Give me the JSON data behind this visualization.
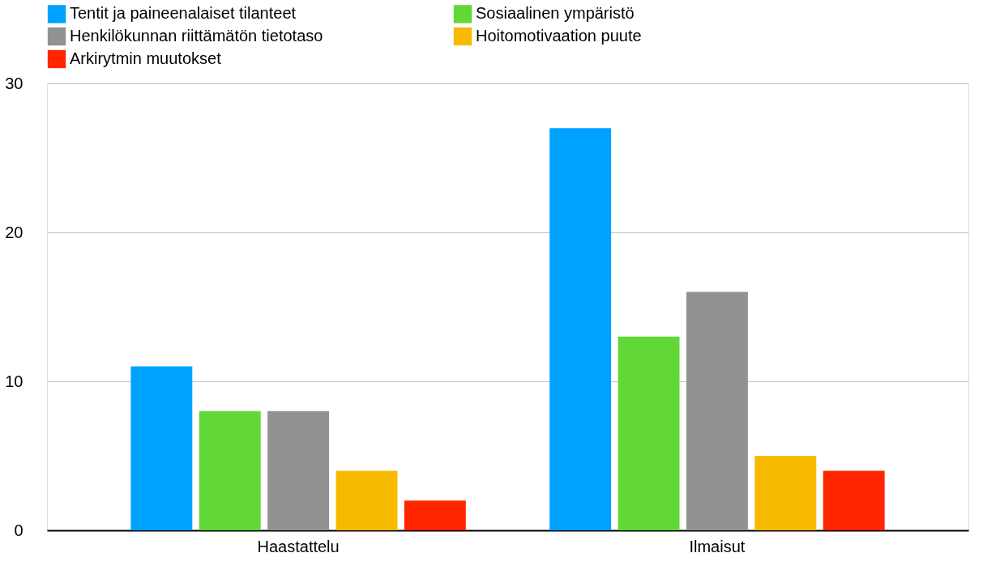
{
  "chart_data": {
    "type": "bar",
    "categories": [
      "Haastattelu",
      "Ilmaisut"
    ],
    "series": [
      {
        "name": "Tentit ja paineenalaiset tilanteet",
        "color": "#00a2ff",
        "values": [
          11,
          27
        ]
      },
      {
        "name": "Sosiaalinen ympäristö",
        "color": "#61d836",
        "values": [
          8,
          13
        ]
      },
      {
        "name": "Henkilökunnan riittämätön tietotaso",
        "color": "#929292",
        "values": [
          8,
          16
        ]
      },
      {
        "name": "Hoitomotivaation puute",
        "color": "#f8ba00",
        "values": [
          4,
          5
        ]
      },
      {
        "name": "Arkirytmin muutokset",
        "color": "#ff2600",
        "values": [
          2,
          4
        ]
      }
    ],
    "ylim": [
      0,
      30
    ],
    "yticks": [
      0,
      10,
      20,
      30
    ],
    "grid": "y",
    "legend": "top"
  }
}
